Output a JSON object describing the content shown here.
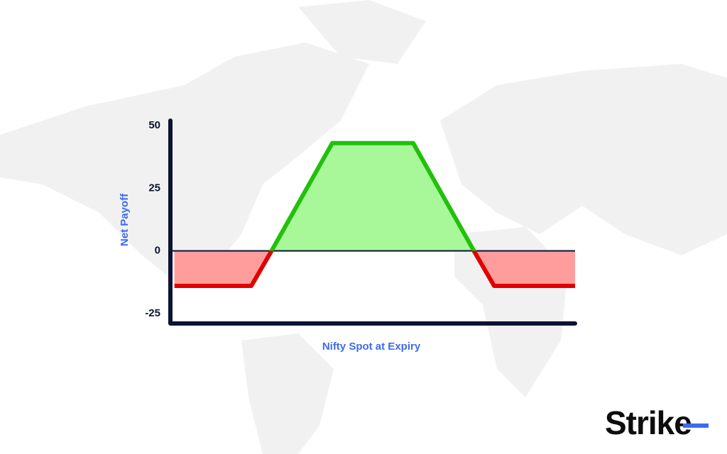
{
  "chart_data": {
    "type": "line",
    "y_label": "Net Payoff",
    "x_label": "Nifty Spot at Expiry",
    "x": [
      1,
      20,
      25,
      40,
      60,
      75,
      80,
      100
    ],
    "values": [
      -14,
      -14,
      0,
      43,
      43,
      0,
      -14,
      -14
    ],
    "xlim": [
      0,
      100
    ],
    "ylim": [
      -29,
      52
    ],
    "yticks": [
      50,
      25,
      0,
      -25
    ],
    "positive_color": "#22c00b",
    "negative_color": "#e00000",
    "positive_fill": "#a8f89a",
    "negative_fill": "#ff9d9d",
    "axis_color": "#0d1333"
  },
  "logo": "Strike"
}
